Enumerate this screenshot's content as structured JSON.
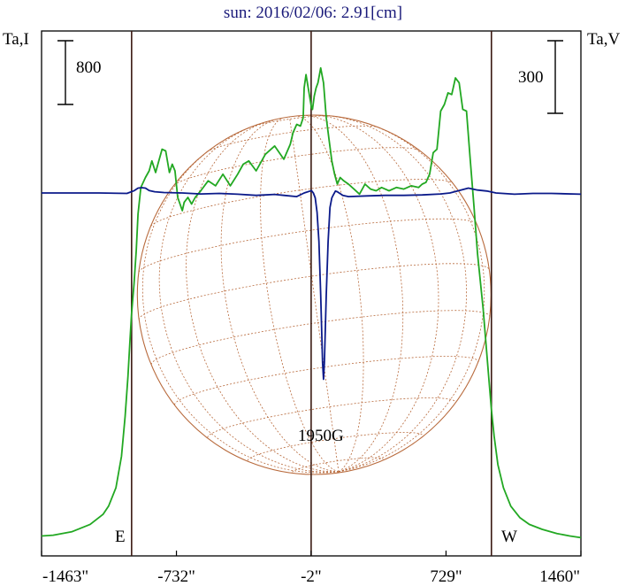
{
  "chart_data": {
    "type": "line",
    "title": "sun: 2016/02/06: 2.91[cm]",
    "ylabel_left": "Ta,I",
    "ylabel_right": "Ta,V",
    "scale_left_label": "800",
    "scale_right_label": "300",
    "x_ticks": [
      "-1463\"",
      "-732\"",
      "-2\"",
      "729\"",
      "1460\""
    ],
    "x_tick_values": [
      -1463,
      -732,
      -2,
      729,
      1460
    ],
    "xlim": [
      -1463,
      1460
    ],
    "limb_east_arcsec": -975,
    "limb_west_arcsec": 975,
    "east_label": "E",
    "west_label": "W",
    "source_annotation": "1950G",
    "source_x_arcsec": 60,
    "grid": false,
    "colors": {
      "intensity": "#22a822",
      "polarization": "#0b1a8a",
      "disk": "#b86a3c",
      "limb_lines": "#3b1a12",
      "title": "#1a1a7a"
    },
    "series": [
      {
        "name": "Ta,I",
        "color": "#22a822",
        "x": [
          -1463,
          -1400,
          -1300,
          -1200,
          -1130,
          -1100,
          -1060,
          -1030,
          -1010,
          -995,
          -985,
          -975,
          -962,
          -950,
          -940,
          -925,
          -900,
          -880,
          -865,
          -845,
          -830,
          -810,
          -790,
          -770,
          -755,
          -740,
          -725,
          -700,
          -690,
          -670,
          -650,
          -630,
          -600,
          -560,
          -520,
          -480,
          -440,
          -400,
          -370,
          -340,
          -300,
          -250,
          -200,
          -150,
          -115,
          -100,
          -80,
          -60,
          -45,
          -40,
          -30,
          -15,
          0,
          5,
          15,
          25,
          35,
          50,
          65,
          80,
          95,
          110,
          125,
          140,
          155,
          175,
          200,
          230,
          260,
          290,
          320,
          350,
          380,
          420,
          460,
          500,
          540,
          580,
          600,
          620,
          640,
          660,
          680,
          700,
          720,
          740,
          760,
          780,
          800,
          820,
          840,
          860,
          880,
          900,
          930,
          960,
          975,
          990,
          1010,
          1040,
          1080,
          1130,
          1180,
          1250,
          1330,
          1400,
          1460
        ],
        "y": [
          40,
          45,
          65,
          110,
          170,
          220,
          330,
          520,
          760,
          1000,
          1200,
          1380,
          1560,
          1760,
          1980,
          2140,
          2200,
          2240,
          2300,
          2230,
          2290,
          2370,
          2360,
          2230,
          2280,
          2240,
          2080,
          2000,
          2050,
          2080,
          2040,
          2080,
          2120,
          2180,
          2150,
          2220,
          2150,
          2220,
          2280,
          2300,
          2240,
          2340,
          2390,
          2310,
          2400,
          2470,
          2520,
          2510,
          2560,
          2740,
          2820,
          2720,
          2620,
          2610,
          2690,
          2740,
          2770,
          2860,
          2770,
          2560,
          2430,
          2300,
          2220,
          2160,
          2200,
          2180,
          2160,
          2130,
          2100,
          2160,
          2130,
          2120,
          2140,
          2120,
          2140,
          2130,
          2150,
          2140,
          2160,
          2170,
          2220,
          2350,
          2370,
          2600,
          2640,
          2710,
          2700,
          2800,
          2770,
          2610,
          2600,
          2310,
          2030,
          1740,
          1410,
          1000,
          800,
          640,
          470,
          330,
          220,
          150,
          110,
          80,
          55,
          40,
          30
        ]
      },
      {
        "name": "Ta,V",
        "color": "#0b1a8a",
        "x": [
          -1463,
          -1300,
          -1150,
          -1000,
          -960,
          -940,
          -920,
          -900,
          -880,
          -850,
          -800,
          -700,
          -600,
          -500,
          -400,
          -300,
          -250,
          -200,
          -150,
          -80,
          -40,
          0,
          10,
          20,
          30,
          40,
          50,
          60,
          65,
          70,
          80,
          90,
          100,
          110,
          120,
          130,
          140,
          150,
          170,
          200,
          300,
          400,
          500,
          600,
          700,
          750,
          800,
          850,
          900,
          950,
          1000,
          1100,
          1200,
          1300,
          1460
        ],
        "y": [
          0,
          0,
          0,
          -2,
          10,
          20,
          22,
          20,
          10,
          5,
          2,
          0,
          -4,
          -2,
          -5,
          -10,
          -8,
          -6,
          -10,
          -15,
          0,
          10,
          0,
          -20,
          -80,
          -200,
          -420,
          -700,
          -770,
          -700,
          -420,
          -200,
          -60,
          -20,
          -5,
          8,
          5,
          0,
          -10,
          -15,
          -12,
          -10,
          -10,
          -8,
          -4,
          0,
          10,
          20,
          12,
          8,
          0,
          -5,
          -2,
          -2,
          -5
        ]
      }
    ]
  }
}
